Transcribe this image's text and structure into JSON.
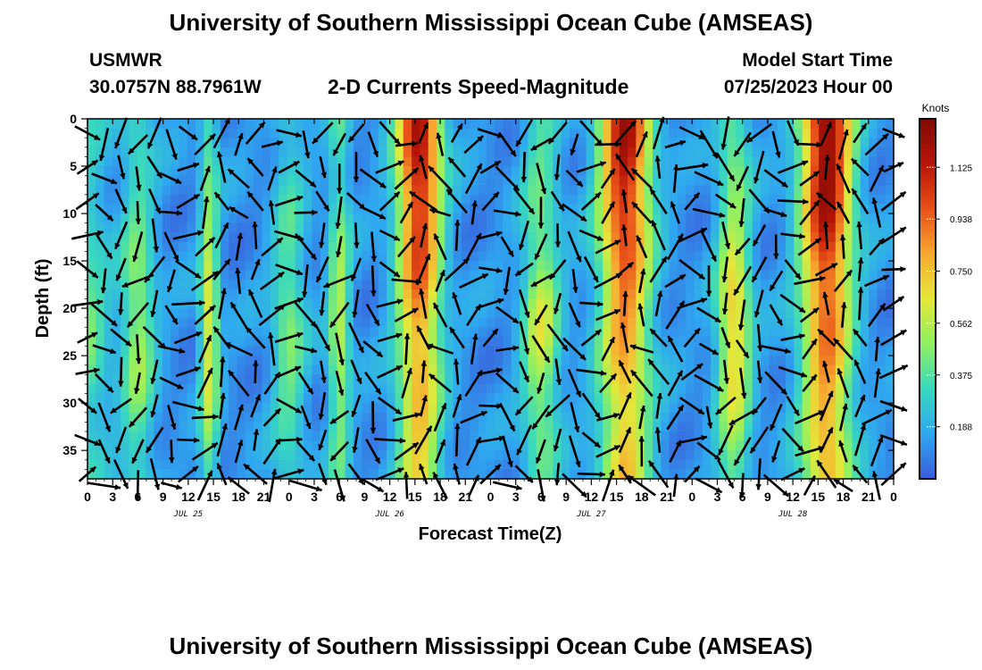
{
  "header": {
    "title": "University of Southern Mississippi Ocean Cube (AMSEAS)",
    "station": "USMWR",
    "coords": "30.0757N  88.7961W",
    "plot_title": "2-D Currents Speed-Magnitude",
    "model_start_label": "Model Start Time",
    "model_start_value": "07/25/2023 Hour 00",
    "repeat_title": "University of Southern Mississippi Ocean Cube (AMSEAS)"
  },
  "chart_data": {
    "type": "heatmap",
    "overlay": "current direction arrows",
    "xlabel": "Forecast Time(Z)",
    "ylabel": "Depth (ft)",
    "x_range_hours": [
      0,
      96
    ],
    "y_range_ft": [
      0,
      38
    ],
    "y_inverted": true,
    "x_tick_labels": [
      "0",
      "3",
      "6",
      "9",
      "12",
      "15",
      "18",
      "21",
      "0",
      "3",
      "6",
      "9",
      "12",
      "15",
      "18",
      "21",
      "0",
      "3",
      "6",
      "9",
      "12",
      "15",
      "18",
      "21",
      "0",
      "3",
      "6",
      "9",
      "12",
      "15",
      "18",
      "21",
      "0"
    ],
    "y_tick_labels": [
      "0",
      "5",
      "10",
      "15",
      "20",
      "25",
      "30",
      "35"
    ],
    "y_ticks": [
      0,
      5,
      10,
      15,
      20,
      25,
      30,
      35
    ],
    "day_labels": [
      {
        "label": "JUL 25",
        "hour": 12
      },
      {
        "label": "JUL 26",
        "hour": 36
      },
      {
        "label": "JUL 27",
        "hour": 60
      },
      {
        "label": "JUL 28",
        "hour": 84
      }
    ],
    "colorbar": {
      "units": "Knots",
      "min": 0,
      "max": 1.3,
      "tick_labels": [
        "0.188",
        "0.375",
        "0.562",
        "0.750",
        "0.938",
        "1.125"
      ],
      "tick_values": [
        0.188,
        0.375,
        0.562,
        0.75,
        0.938,
        1.125
      ],
      "colors": [
        "#3a5bdc",
        "#2fa8f0",
        "#38d8c0",
        "#8ef060",
        "#e4e83a",
        "#f8a830",
        "#e85018",
        "#b81408",
        "#7e0c04"
      ]
    },
    "speed_bands": [
      {
        "center_hour": 0,
        "width": 2.5,
        "peak": 0.3
      },
      {
        "center_hour": 6,
        "width": 2.0,
        "peak": 0.4
      },
      {
        "center_hour": 14.5,
        "width": 1.1,
        "peak": 0.55
      },
      {
        "center_hour": 24,
        "width": 2.0,
        "peak": 0.33
      },
      {
        "center_hour": 30,
        "width": 1.3,
        "peak": 0.45
      },
      {
        "center_hour": 39.5,
        "width": 2.6,
        "peak": 1.05
      },
      {
        "center_hour": 54,
        "width": 2.2,
        "peak": 0.48
      },
      {
        "center_hour": 64,
        "width": 3.0,
        "peak": 1.05
      },
      {
        "center_hour": 77,
        "width": 2.0,
        "peak": 0.62
      },
      {
        "center_hour": 88,
        "width": 3.0,
        "peak": 1.15
      }
    ]
  }
}
